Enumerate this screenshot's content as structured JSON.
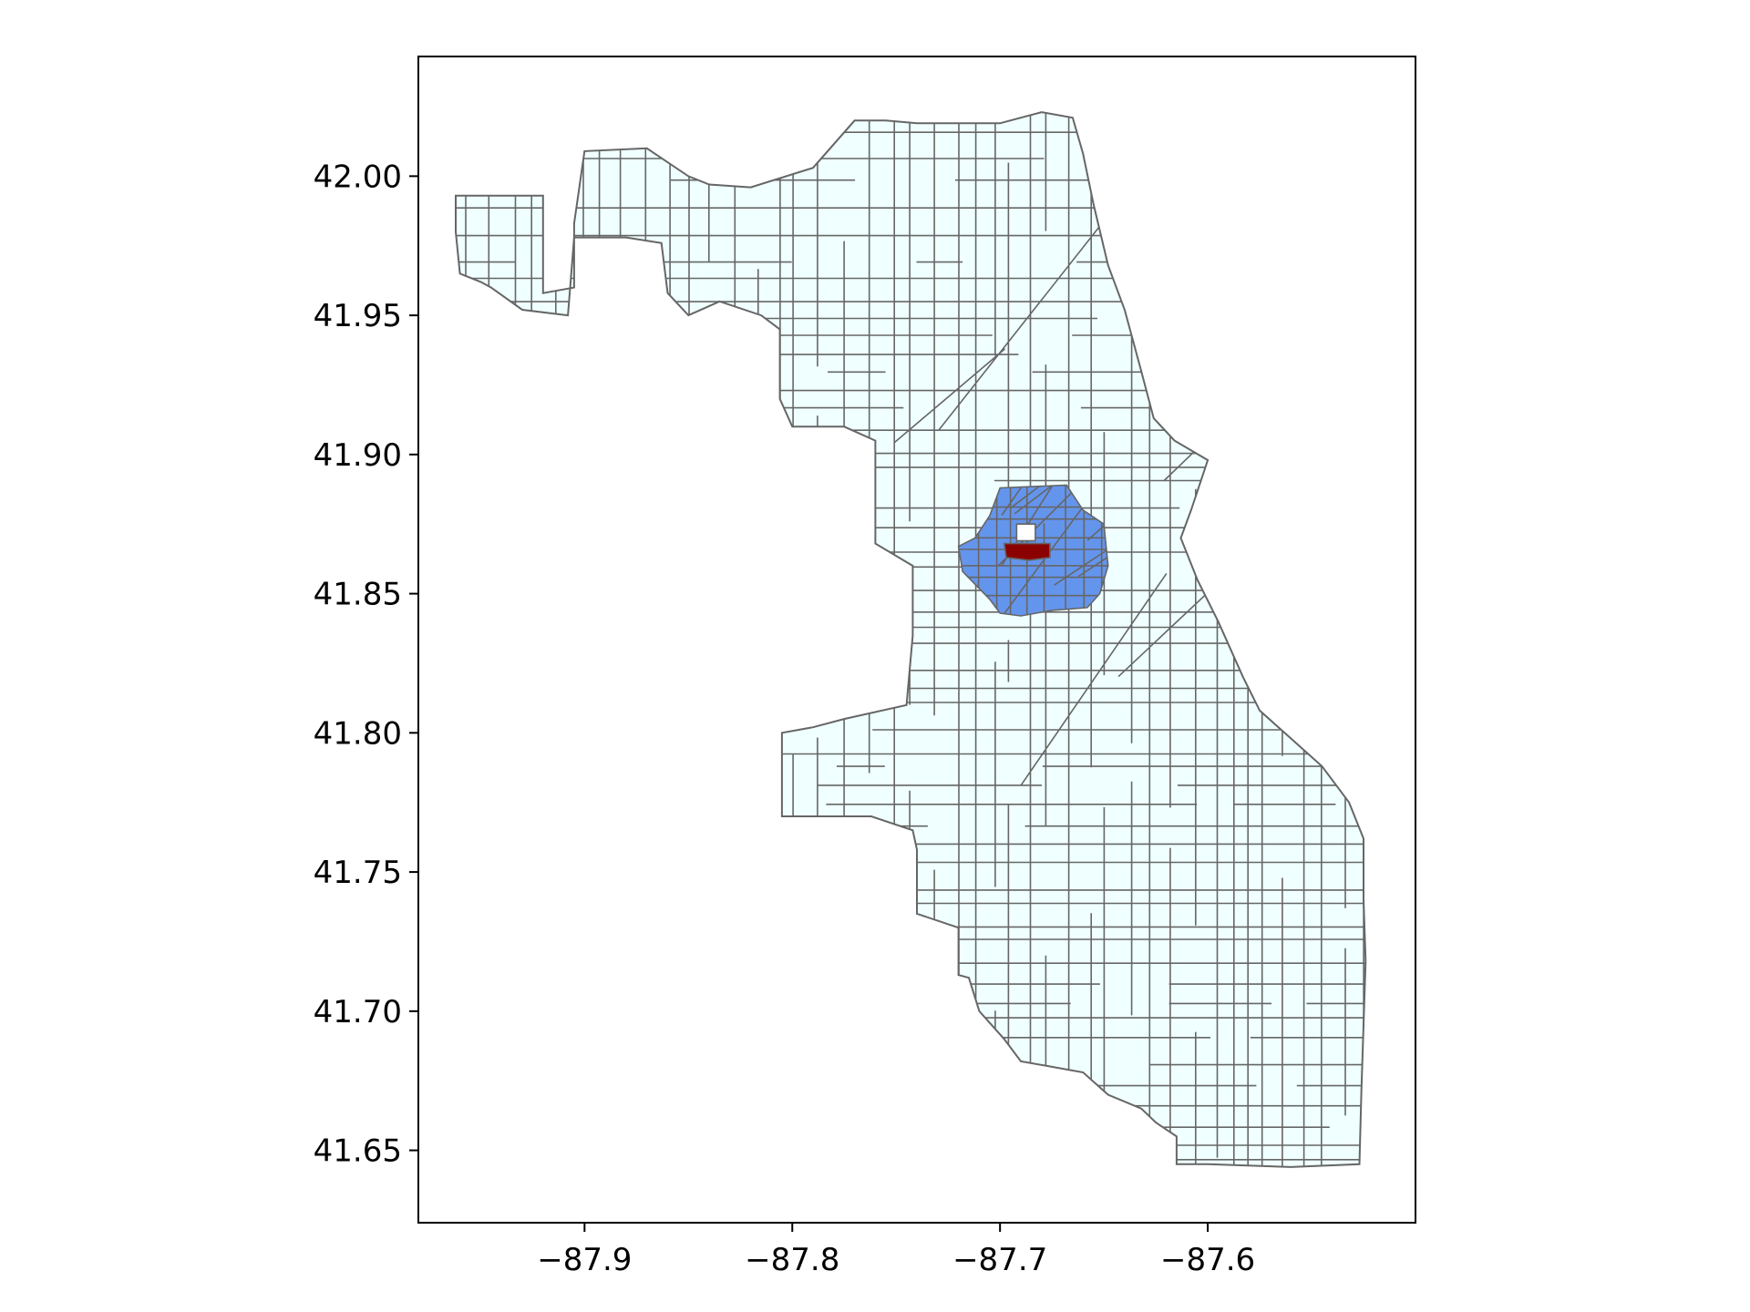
{
  "colors": {
    "background_tract": "#f0ffff",
    "tract_edge": "#666666",
    "neighbor_tract": "#6495ed",
    "focus_tract": "#8b0000",
    "axes_frame": "#000000"
  },
  "axes": {
    "x_range": [
      -87.98,
      -87.5
    ],
    "y_range": [
      41.624,
      42.043
    ],
    "x_ticks": [
      {
        "value": -87.9,
        "label": "−87.9"
      },
      {
        "value": -87.8,
        "label": "−87.8"
      },
      {
        "value": -87.7,
        "label": "−87.7"
      },
      {
        "value": -87.6,
        "label": "−87.6"
      }
    ],
    "y_ticks": [
      {
        "value": 42.0,
        "label": "42.00"
      },
      {
        "value": 41.95,
        "label": "41.95"
      },
      {
        "value": 41.9,
        "label": "41.90"
      },
      {
        "value": 41.85,
        "label": "41.85"
      },
      {
        "value": 41.8,
        "label": "41.80"
      },
      {
        "value": 41.75,
        "label": "41.75"
      },
      {
        "value": 41.7,
        "label": "41.70"
      },
      {
        "value": 41.65,
        "label": "41.65"
      }
    ]
  },
  "map": {
    "city_outline": [
      [
        -87.94,
        41.993
      ],
      [
        -87.92,
        41.993
      ],
      [
        -87.92,
        41.958
      ],
      [
        -87.905,
        41.96
      ],
      [
        -87.905,
        41.983
      ],
      [
        -87.9,
        42.009
      ],
      [
        -87.87,
        42.01
      ],
      [
        -87.85,
        42.0
      ],
      [
        -87.84,
        41.997
      ],
      [
        -87.82,
        41.996
      ],
      [
        -87.79,
        42.003
      ],
      [
        -87.77,
        42.02
      ],
      [
        -87.755,
        42.02
      ],
      [
        -87.74,
        42.019
      ],
      [
        -87.72,
        42.019
      ],
      [
        -87.7,
        42.019
      ],
      [
        -87.68,
        42.023
      ],
      [
        -87.665,
        42.021
      ],
      [
        -87.66,
        42.008
      ],
      [
        -87.655,
        41.99
      ],
      [
        -87.648,
        41.968
      ],
      [
        -87.64,
        41.952
      ],
      [
        -87.632,
        41.93
      ],
      [
        -87.626,
        41.913
      ],
      [
        -87.616,
        41.905
      ],
      [
        -87.6,
        41.898
      ],
      [
        -87.608,
        41.88
      ],
      [
        -87.613,
        41.87
      ],
      [
        -87.605,
        41.855
      ],
      [
        -87.595,
        41.84
      ],
      [
        -87.583,
        41.82
      ],
      [
        -87.575,
        41.808
      ],
      [
        -87.56,
        41.798
      ],
      [
        -87.545,
        41.788
      ],
      [
        -87.532,
        41.775
      ],
      [
        -87.525,
        41.762
      ],
      [
        -87.525,
        41.74
      ],
      [
        -87.524,
        41.718
      ],
      [
        -87.525,
        41.695
      ],
      [
        -87.526,
        41.672
      ],
      [
        -87.527,
        41.645
      ],
      [
        -87.56,
        41.644
      ],
      [
        -87.6,
        41.645
      ],
      [
        -87.615,
        41.645
      ],
      [
        -87.615,
        41.655
      ],
      [
        -87.625,
        41.66
      ],
      [
        -87.632,
        41.665
      ],
      [
        -87.648,
        41.67
      ],
      [
        -87.66,
        41.678
      ],
      [
        -87.675,
        41.68
      ],
      [
        -87.69,
        41.682
      ],
      [
        -87.698,
        41.69
      ],
      [
        -87.71,
        41.7
      ],
      [
        -87.715,
        41.712
      ],
      [
        -87.72,
        41.713
      ],
      [
        -87.72,
        41.73
      ],
      [
        -87.74,
        41.735
      ],
      [
        -87.74,
        41.758
      ],
      [
        -87.742,
        41.765
      ],
      [
        -87.762,
        41.77
      ],
      [
        -87.775,
        41.77
      ],
      [
        -87.8,
        41.77
      ],
      [
        -87.805,
        41.77
      ],
      [
        -87.805,
        41.79
      ],
      [
        -87.805,
        41.8
      ],
      [
        -87.79,
        41.802
      ],
      [
        -87.775,
        41.805
      ],
      [
        -87.745,
        41.81
      ],
      [
        -87.742,
        41.835
      ],
      [
        -87.742,
        41.86
      ],
      [
        -87.76,
        41.868
      ],
      [
        -87.76,
        41.89
      ],
      [
        -87.76,
        41.905
      ],
      [
        -87.775,
        41.91
      ],
      [
        -87.8,
        41.91
      ],
      [
        -87.806,
        41.92
      ],
      [
        -87.806,
        41.945
      ],
      [
        -87.815,
        41.95
      ],
      [
        -87.835,
        41.955
      ],
      [
        -87.85,
        41.95
      ],
      [
        -87.86,
        41.958
      ],
      [
        -87.863,
        41.976
      ],
      [
        -87.88,
        41.978
      ],
      [
        -87.905,
        41.978
      ],
      [
        -87.908,
        41.95
      ],
      [
        -87.93,
        41.952
      ],
      [
        -87.945,
        41.96
      ],
      [
        -87.95,
        41.962
      ],
      [
        -87.96,
        41.965
      ],
      [
        -87.962,
        41.98
      ],
      [
        -87.962,
        41.993
      ]
    ],
    "neighbor_outline": [
      [
        -87.7,
        41.888
      ],
      [
        -87.668,
        41.889
      ],
      [
        -87.66,
        41.88
      ],
      [
        -87.65,
        41.875
      ],
      [
        -87.648,
        41.86
      ],
      [
        -87.652,
        41.85
      ],
      [
        -87.658,
        41.845
      ],
      [
        -87.675,
        41.844
      ],
      [
        -87.69,
        41.842
      ],
      [
        -87.7,
        41.843
      ],
      [
        -87.705,
        41.848
      ],
      [
        -87.718,
        41.858
      ],
      [
        -87.72,
        41.867
      ],
      [
        -87.712,
        41.87
      ],
      [
        -87.705,
        41.878
      ]
    ],
    "focus_tract": [
      [
        -87.698,
        41.868
      ],
      [
        -87.676,
        41.868
      ],
      [
        -87.676,
        41.863
      ],
      [
        -87.686,
        41.862
      ],
      [
        -87.697,
        41.863
      ]
    ],
    "notch_tract": [
      [
        -87.692,
        41.875
      ],
      [
        -87.683,
        41.875
      ],
      [
        -87.683,
        41.869
      ],
      [
        -87.692,
        41.869
      ]
    ]
  }
}
